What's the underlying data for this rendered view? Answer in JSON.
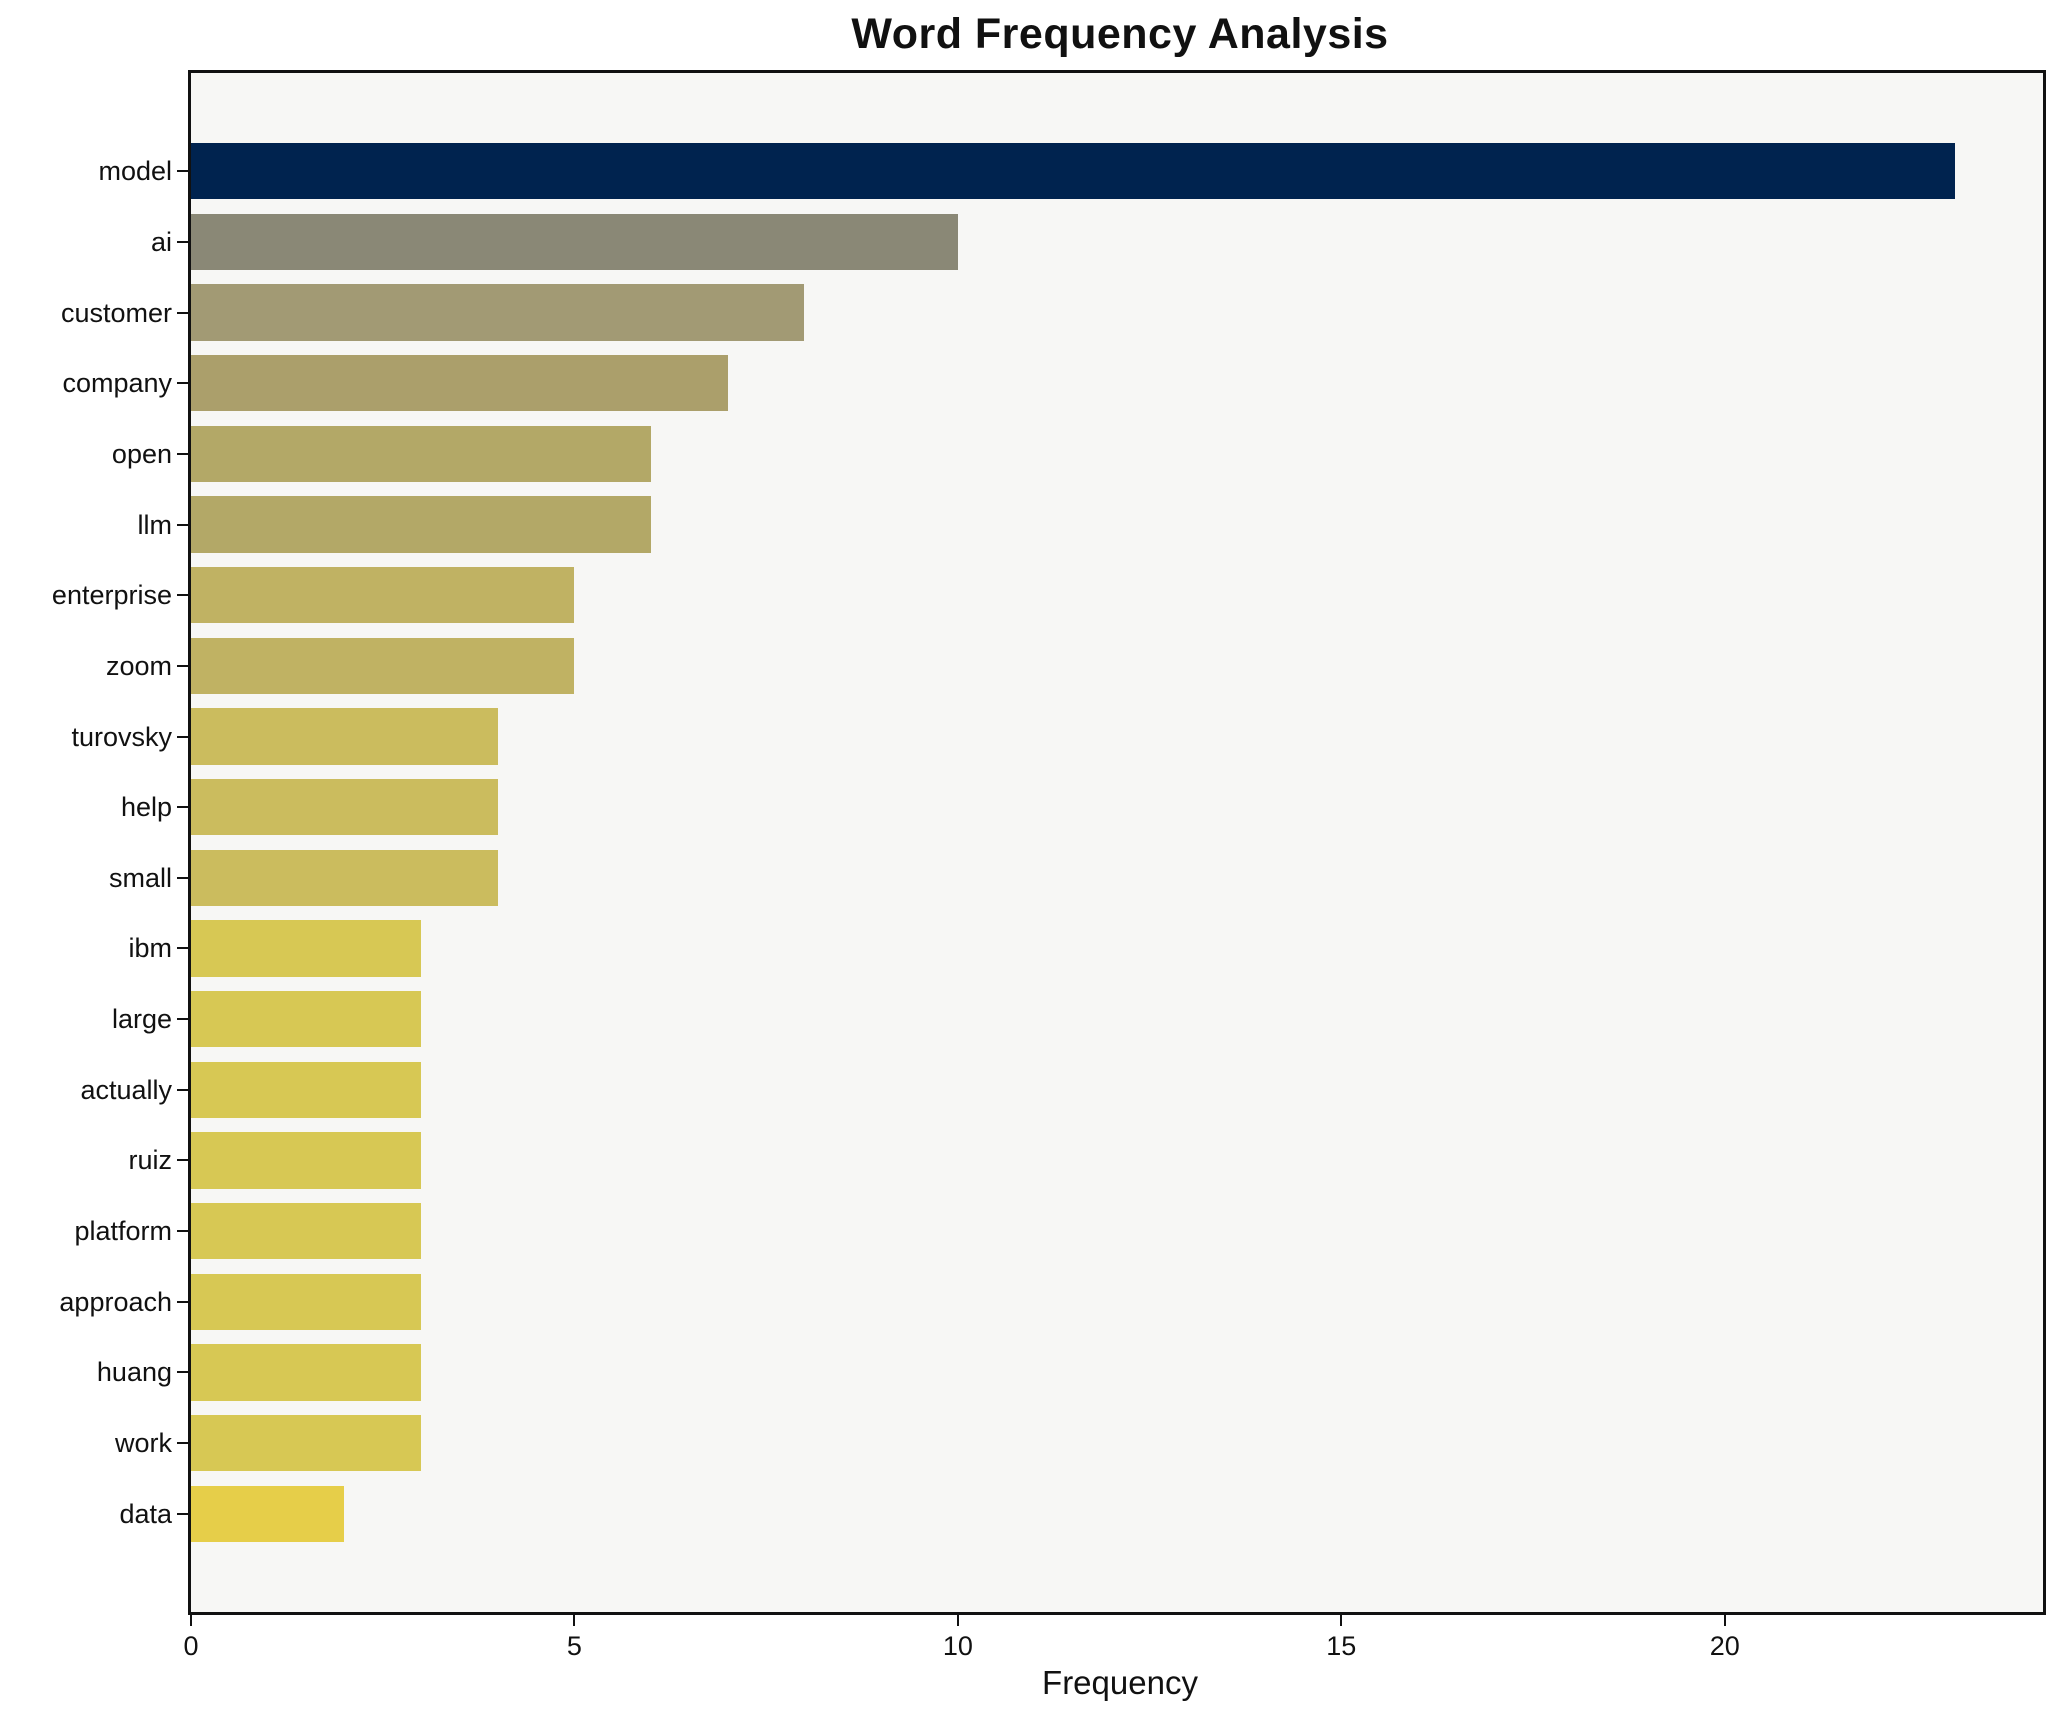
{
  "chart_data": {
    "type": "bar",
    "orientation": "horizontal",
    "title": "Word Frequency Analysis",
    "xlabel": "Frequency",
    "ylabel": "",
    "categories": [
      "model",
      "ai",
      "customer",
      "company",
      "open",
      "llm",
      "enterprise",
      "zoom",
      "turovsky",
      "help",
      "small",
      "ibm",
      "large",
      "actually",
      "ruiz",
      "platform",
      "approach",
      "huang",
      "work",
      "data"
    ],
    "values": [
      23,
      10,
      8,
      7,
      6,
      6,
      5,
      5,
      4,
      4,
      4,
      3,
      3,
      3,
      3,
      3,
      3,
      3,
      3,
      2
    ],
    "bar_colors": [
      "#00234f",
      "#8a8876",
      "#a29a74",
      "#ab9f6b",
      "#b3a867",
      "#b3a867",
      "#c0b263",
      "#c0b263",
      "#cbbc5e",
      "#cbbc5e",
      "#cbbc5e",
      "#d7c854",
      "#d7c854",
      "#d7c854",
      "#d7c854",
      "#d7c854",
      "#d7c854",
      "#d7c854",
      "#d7c854",
      "#e6ce49"
    ],
    "xlim": [
      0,
      24.15
    ],
    "x_ticks": [
      0,
      5,
      10,
      15,
      20
    ],
    "grid": false,
    "legend": null,
    "colormap": "cividis",
    "bar_height_fraction": 0.8,
    "plot_bg": "#f7f7f5",
    "figure_bg": "#ffffff",
    "spine_color": "#111111",
    "text_color": "#111111"
  }
}
